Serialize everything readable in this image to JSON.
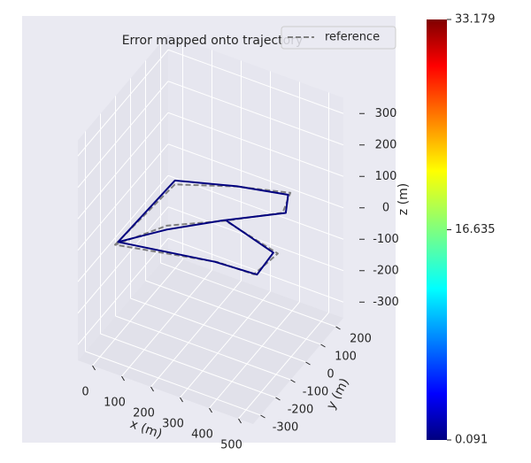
{
  "chart_data": {
    "type": "line3d",
    "title": "Error mapped onto trajectory",
    "xlabel": "x (m)",
    "ylabel": "y (m)",
    "zlabel": "z (m)",
    "xlim": [
      -50,
      550
    ],
    "xticks": [
      0,
      100,
      200,
      300,
      400,
      500
    ],
    "ylim": [
      -350,
      250
    ],
    "yticks": [
      -300,
      -200,
      -100,
      0,
      100,
      200
    ],
    "zlim": [
      -350,
      350
    ],
    "zticks": [
      -300,
      -200,
      -100,
      0,
      100,
      200,
      300
    ],
    "grid": true,
    "legend_loc": "upper right",
    "series": [
      {
        "name": "reference",
        "color": "#808080",
        "style": "dashed",
        "x": [
          0,
          50,
          250,
          420,
          430,
          250,
          100,
          0,
          300,
          450,
          480,
          250
        ],
        "y": [
          -200,
          100,
          120,
          150,
          80,
          50,
          -50,
          -200,
          -100,
          -150,
          -50,
          50
        ],
        "z": [
          -50,
          -10,
          40,
          60,
          40,
          -30,
          -40,
          -50,
          -60,
          -20,
          0,
          -30
        ]
      },
      {
        "color": "#00007f",
        "style": "solid",
        "x": [
          5,
          45,
          255,
          415,
          435,
          245,
          105,
          5,
          295,
          455,
          470,
          255
        ],
        "y": [
          -190,
          110,
          115,
          145,
          90,
          40,
          -60,
          -190,
          -110,
          -140,
          -60,
          45
        ],
        "z": [
          -45,
          -5,
          45,
          55,
          35,
          -25,
          -45,
          -45,
          -55,
          -25,
          5,
          -25
        ]
      }
    ],
    "colorbar": {
      "colormap": "jet",
      "lim": [
        0.091,
        33.179
      ],
      "ticks": [
        0.091,
        16.635,
        33.179
      ]
    }
  }
}
